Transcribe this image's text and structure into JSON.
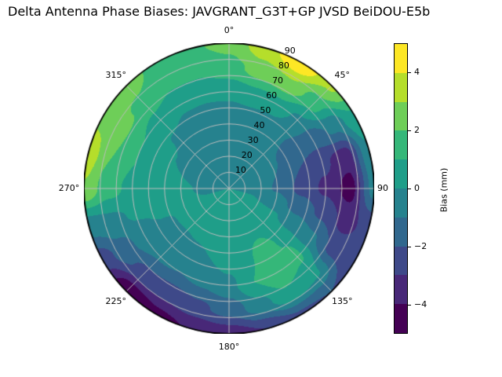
{
  "chart_data": {
    "type": "heatmap",
    "projection": "polar_contour",
    "title": "Delta Antenna Phase Biases: JAVGRANT_G3T+GP JVSD BeiDOU-E5b",
    "angular_axis": {
      "direction": "clockwise",
      "zero_location": "top",
      "tick_labels": [
        {
          "azimuth": 0,
          "label": "0°"
        },
        {
          "azimuth": 45,
          "label": "45°"
        },
        {
          "azimuth": 90,
          "label": "90"
        },
        {
          "azimuth": 135,
          "label": "135°"
        },
        {
          "azimuth": 180,
          "label": "180°"
        },
        {
          "azimuth": 225,
          "label": "225°"
        },
        {
          "azimuth": 270,
          "label": "270°"
        },
        {
          "azimuth": 315,
          "label": "315°"
        }
      ]
    },
    "radial_axis": {
      "range": [
        0,
        90
      ],
      "tick_values": [
        10,
        20,
        30,
        40,
        50,
        60,
        70,
        80,
        90
      ],
      "tick_labels": [
        "10",
        "20",
        "30",
        "40",
        "50",
        "60",
        "70",
        "80",
        "90"
      ],
      "label_angle_deg": 22.5,
      "grid_circle_values": [
        10,
        20,
        30,
        40,
        50,
        60,
        70,
        80
      ],
      "grid_spoke_angles": [
        0,
        45,
        90,
        135,
        180,
        225,
        270,
        315
      ]
    },
    "levels": [
      -5,
      -4,
      -3,
      -2,
      -1,
      0,
      1,
      2,
      3,
      4,
      5
    ],
    "level_colors": [
      "#440154",
      "#482878",
      "#3e4989",
      "#31688e",
      "#26828e",
      "#1f9e89",
      "#35b779",
      "#6ece58",
      "#b5de2b",
      "#fde725"
    ],
    "grid_color": "#bdbdbd",
    "outline_color": "#000000",
    "colorbar": {
      "label": "Bias (mm)",
      "tick_values": [
        4,
        2,
        0,
        -2,
        -4
      ],
      "tick_labels": [
        "4",
        "2",
        "0",
        "−2",
        "−4"
      ],
      "value_min": -5,
      "value_max": 5
    },
    "field": {
      "units": "mm",
      "azimuth_deg": [
        0,
        15,
        30,
        45,
        60,
        75,
        90,
        105,
        120,
        135,
        150,
        165,
        180,
        195,
        210,
        225,
        240,
        255,
        270,
        285,
        300,
        315,
        330,
        345
      ],
      "zenith_deg": [
        0,
        15,
        30,
        45,
        60,
        75,
        90
      ],
      "values": [
        [
          0,
          0,
          0,
          0,
          0,
          0,
          0,
          0,
          0,
          0,
          0,
          0,
          0,
          0,
          0,
          0,
          0,
          0,
          0,
          0,
          0,
          0,
          0,
          0
        ],
        [
          -0.5,
          -0.5,
          -0.5,
          -0.4,
          -0.4,
          -0.3,
          -0.2,
          0,
          0.2,
          0.4,
          0.5,
          0.5,
          0.5,
          0.4,
          0.3,
          0.2,
          0.1,
          0,
          -0.1,
          -0.2,
          -0.3,
          -0.4,
          -0.5,
          -0.5
        ],
        [
          -0.8,
          -0.8,
          -0.7,
          -0.7,
          -0.9,
          -1.0,
          -1.1,
          -0.6,
          0.1,
          0.5,
          0.8,
          0.7,
          0.5,
          0.4,
          0.3,
          0.2,
          0.1,
          0.1,
          0.1,
          0,
          -0.2,
          -0.4,
          -0.6,
          -0.7
        ],
        [
          -0.6,
          -0.5,
          -0.6,
          -0.9,
          -1.5,
          -2.0,
          -2.3,
          -1.4,
          -0.3,
          0.9,
          1.4,
          0.9,
          0.4,
          0,
          -0.2,
          -0.3,
          -0.1,
          0.2,
          0.4,
          0.5,
          0.2,
          -0.1,
          -0.4,
          -0.5
        ],
        [
          0.3,
          0.6,
          0.6,
          -0.2,
          -1.6,
          -2.8,
          -3.2,
          -2.2,
          -0.9,
          1.2,
          1.8,
          1.0,
          -0.3,
          -0.8,
          -1.0,
          -0.9,
          -0.5,
          0.1,
          0.7,
          1.0,
          1.0,
          0.6,
          0.2,
          0.2
        ],
        [
          1.6,
          2.4,
          2.8,
          1.5,
          -0.8,
          -3.6,
          -4.4,
          -3.4,
          -2.4,
          0.2,
          0.8,
          -0.4,
          -1.6,
          -2.2,
          -2.6,
          -2.4,
          -1.4,
          -0.2,
          1.4,
          2.0,
          2.2,
          1.8,
          1.2,
          1.2
        ],
        [
          2.3,
          3.6,
          4.9,
          3.2,
          0.8,
          -0.2,
          -0.6,
          -2.6,
          -2.8,
          -2.0,
          -2.2,
          -3.0,
          -3.6,
          -3.9,
          -4.3,
          -4.9,
          -2.6,
          -0.5,
          2.9,
          3.6,
          2.7,
          2.4,
          1.7,
          1.9
        ]
      ]
    }
  }
}
